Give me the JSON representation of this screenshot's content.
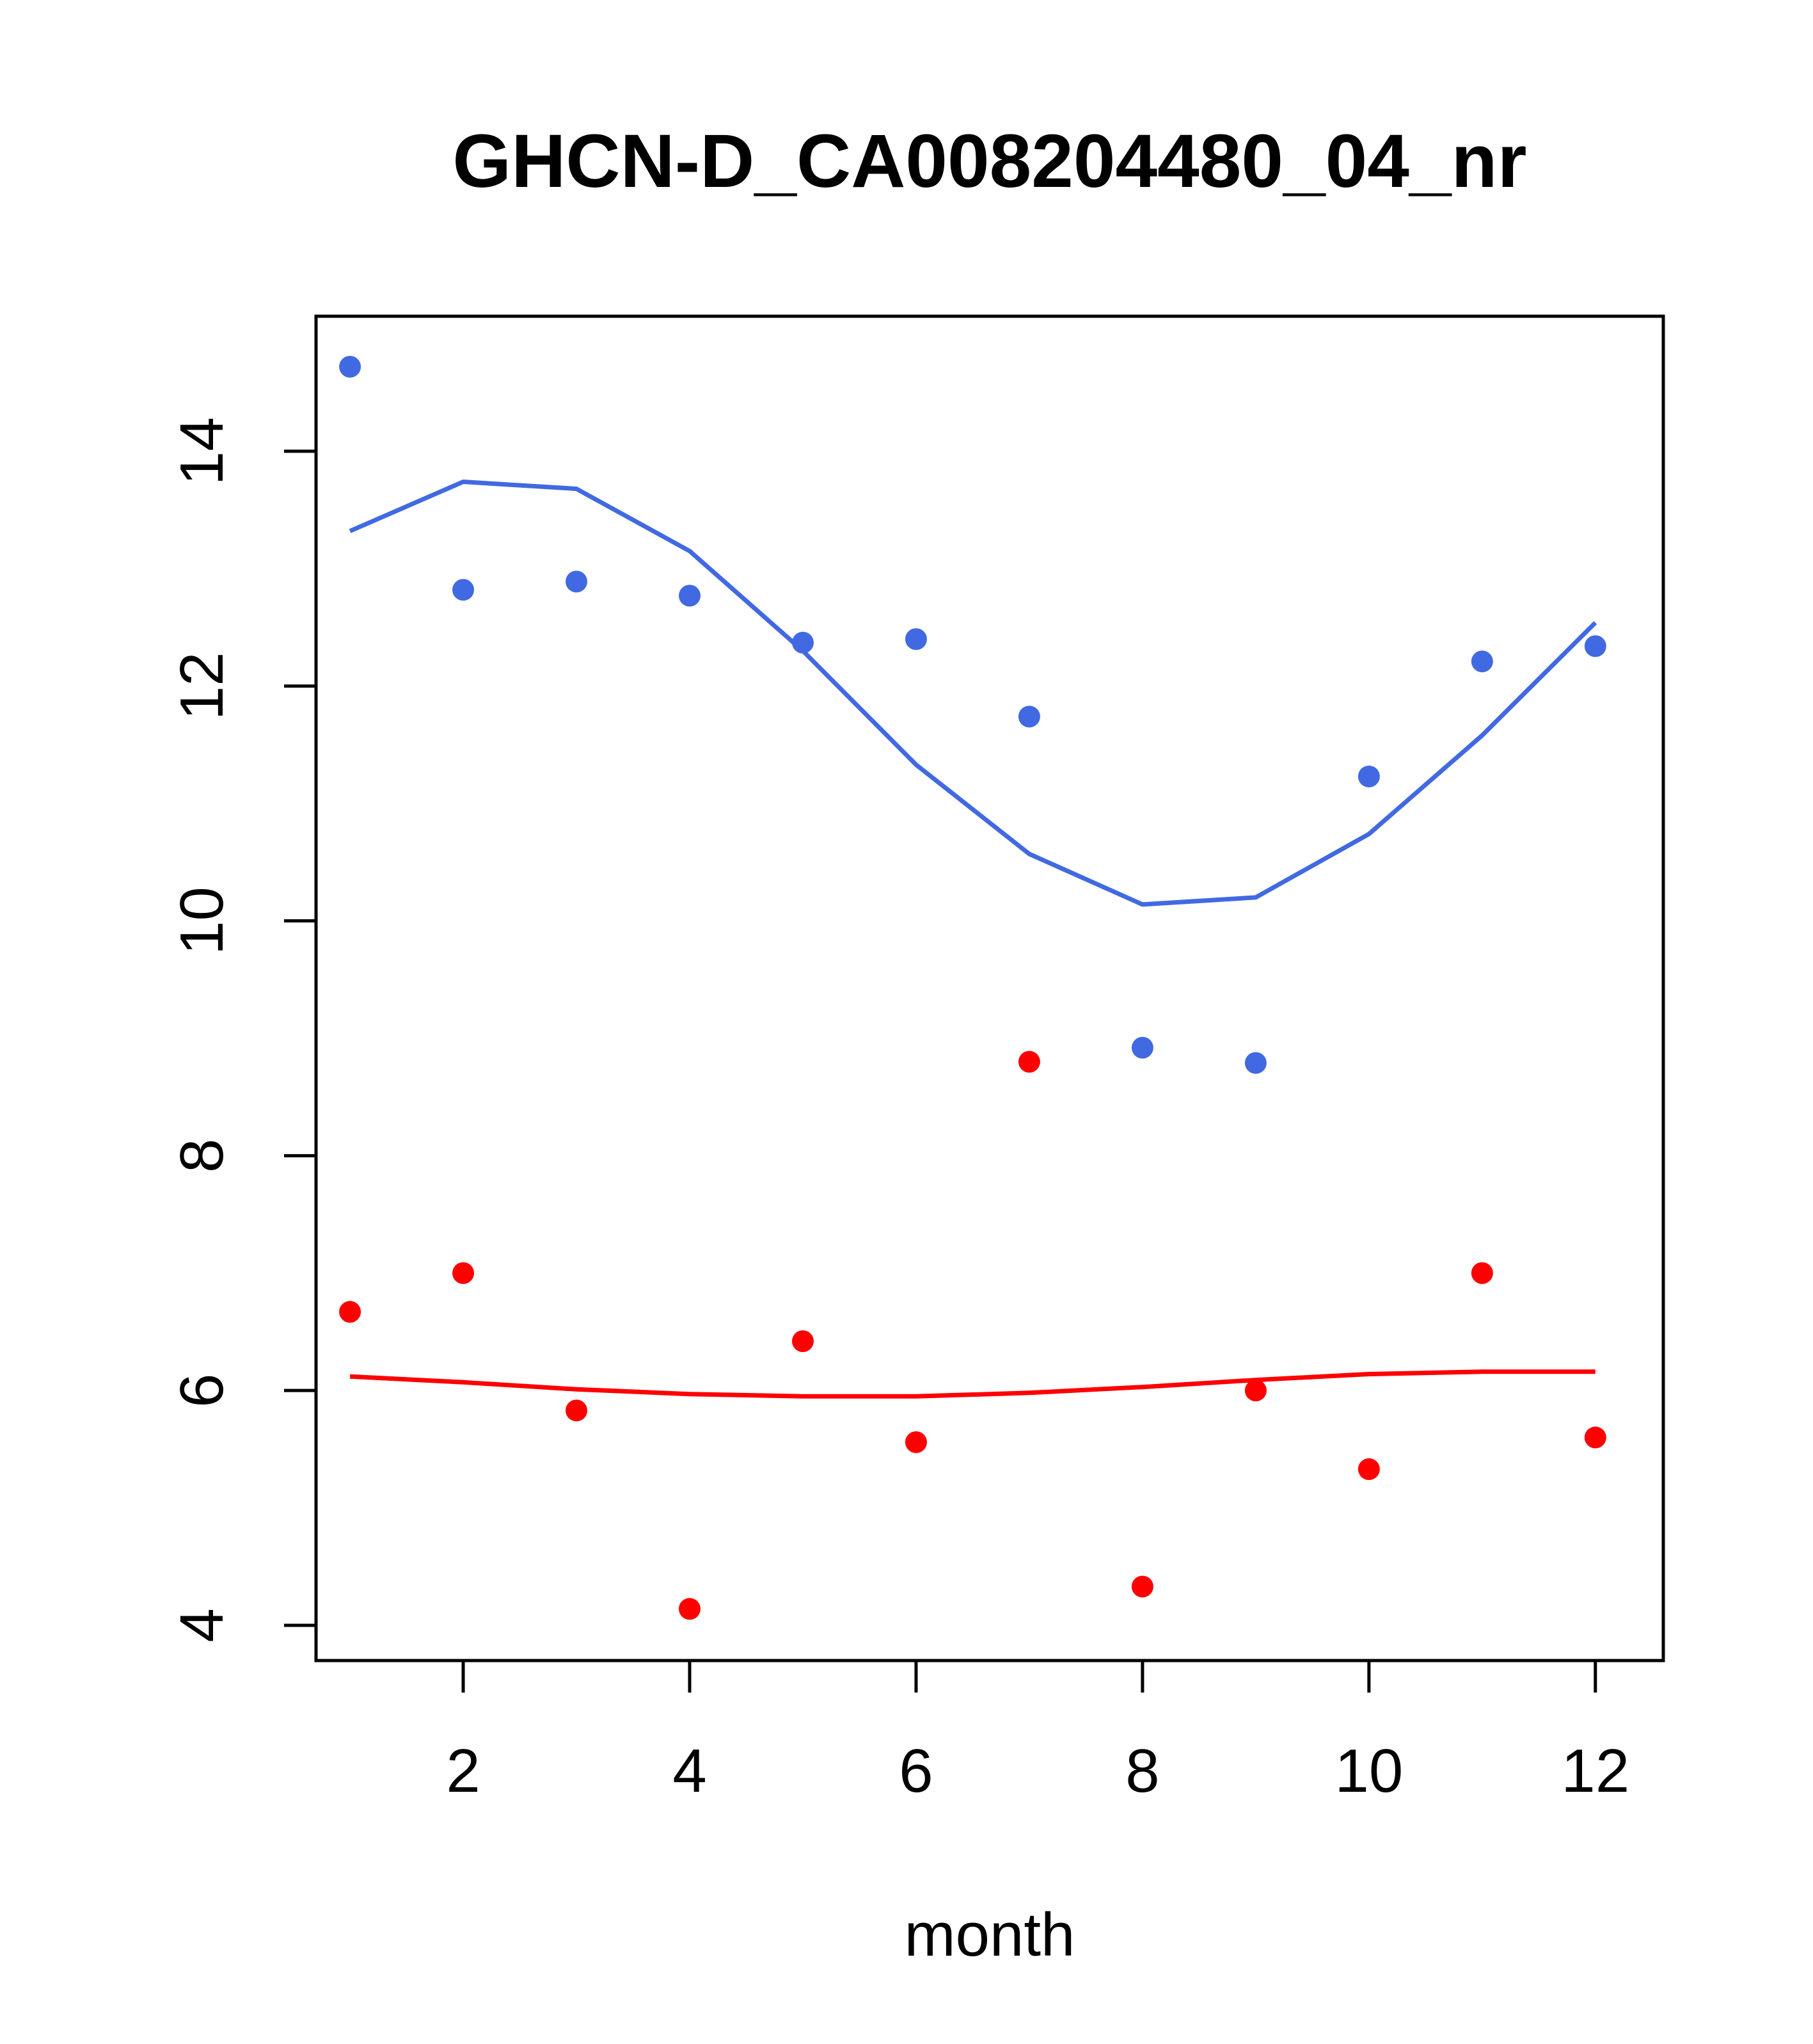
{
  "chart_data": {
    "type": "scatter",
    "title": "GHCN-D_CA008204480_04_nr",
    "xlabel": "month",
    "ylabel": "",
    "xlim": [
      0.7,
      12.6
    ],
    "ylim": [
      3.7,
      15.15
    ],
    "x_ticks": [
      2,
      4,
      6,
      8,
      10,
      12
    ],
    "y_ticks": [
      4,
      6,
      8,
      10,
      12,
      14
    ],
    "grid": false,
    "legend": "none",
    "series": [
      {
        "kind": "points",
        "color": "#4169E1",
        "x": [
          1,
          2,
          3,
          4,
          5,
          6,
          7,
          8,
          9,
          10,
          11,
          12
        ],
        "y": [
          14.72,
          12.82,
          12.89,
          12.77,
          12.37,
          12.4,
          11.74,
          8.92,
          8.79,
          11.23,
          12.21,
          12.34
        ]
      },
      {
        "kind": "line",
        "color": "#4169E1",
        "x": [
          1,
          2,
          3,
          4,
          5,
          6,
          7,
          8,
          9,
          10,
          11,
          12
        ],
        "y": [
          13.32,
          13.74,
          13.68,
          13.15,
          12.3,
          11.33,
          10.57,
          10.14,
          10.2,
          10.74,
          11.58,
          12.54
        ]
      },
      {
        "kind": "points",
        "color": "#FF0000",
        "x": [
          1,
          2,
          3,
          4,
          5,
          6,
          7,
          8,
          9,
          10,
          11,
          12
        ],
        "y": [
          6.67,
          7.0,
          5.83,
          4.14,
          6.42,
          5.56,
          8.8,
          4.33,
          6.0,
          5.33,
          7.0,
          5.6
        ]
      },
      {
        "kind": "line",
        "color": "#FF0000",
        "x": [
          1,
          2,
          3,
          4,
          5,
          6,
          7,
          8,
          9,
          10,
          11,
          12
        ],
        "y": [
          6.12,
          6.07,
          6.01,
          5.97,
          5.95,
          5.95,
          5.98,
          6.03,
          6.09,
          6.14,
          6.16,
          6.16
        ]
      }
    ]
  }
}
